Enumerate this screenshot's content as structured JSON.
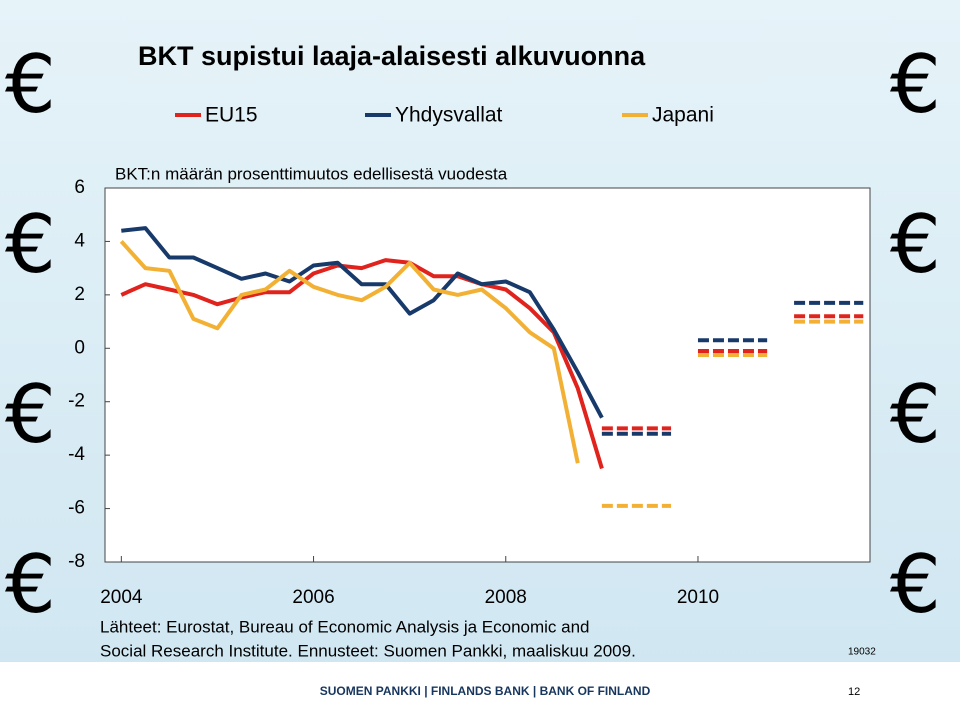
{
  "chart_data": {
    "type": "line",
    "title": "BKT supistui laaja-alaisesti alkuvuonna",
    "subtitle": "BKT:n määrän prosenttimuutos edellisestä vuodesta",
    "x": [
      2004,
      2004.25,
      2004.5,
      2004.75,
      2005,
      2005.25,
      2005.5,
      2005.75,
      2006,
      2006.25,
      2006.5,
      2006.75,
      2007,
      2007.25,
      2007.5,
      2007.75,
      2008,
      2008.25,
      2008.5,
      2008.75,
      2009
    ],
    "series": [
      {
        "name": "EU15",
        "color": "#e0231c",
        "values": [
          2.0,
          2.4,
          2.2,
          2.0,
          1.65,
          1.9,
          2.1,
          2.1,
          2.8,
          3.1,
          3.0,
          3.3,
          3.2,
          2.7,
          2.7,
          2.4,
          2.2,
          1.5,
          0.6,
          -1.5,
          -4.5
        ],
        "forecast_x": [
          2009,
          2010,
          2011
        ],
        "forecast": [
          -3.0,
          -0.1,
          1.2
        ]
      },
      {
        "name": "Yhdysvallat",
        "color": "#183a6b",
        "values": [
          4.4,
          4.5,
          3.4,
          3.4,
          3.0,
          2.6,
          2.8,
          2.5,
          3.1,
          3.2,
          2.4,
          2.4,
          1.3,
          1.8,
          2.8,
          2.4,
          2.5,
          2.1,
          0.7,
          -0.9,
          -2.6
        ],
        "forecast_x": [
          2009,
          2010,
          2011
        ],
        "forecast": [
          -3.2,
          0.3,
          1.7
        ]
      },
      {
        "name": "Japani",
        "color": "#f2b134",
        "values": [
          4.0,
          3.0,
          2.9,
          1.1,
          0.75,
          2.0,
          2.2,
          2.9,
          2.3,
          2.0,
          1.8,
          2.3,
          3.2,
          2.2,
          2.0,
          2.2,
          1.5,
          0.6,
          0.0,
          -4.3,
          null
        ],
        "forecast_x": [
          2009,
          2010,
          2011
        ],
        "forecast": [
          -5.9,
          -0.25,
          1.0
        ]
      }
    ],
    "xlim": [
      2003.83,
      2011.79
    ],
    "xticks": [
      2004,
      2006,
      2008,
      2010
    ],
    "ylim": [
      -8,
      6
    ],
    "yticks": [
      -8,
      -6,
      -4,
      -2,
      0,
      2,
      4,
      6
    ],
    "grid": false
  },
  "source": [
    "Lähteet: Eurostat, Bureau of Economic Analysis ja Economic and",
    "Social Research Institute. Ennusteet: Suomen Pankki, maaliskuu 2009."
  ],
  "code": "19032",
  "footer": "SUOMEN PANKKI | FINLANDS BANK | BANK OF FINLAND",
  "page_number": "12"
}
